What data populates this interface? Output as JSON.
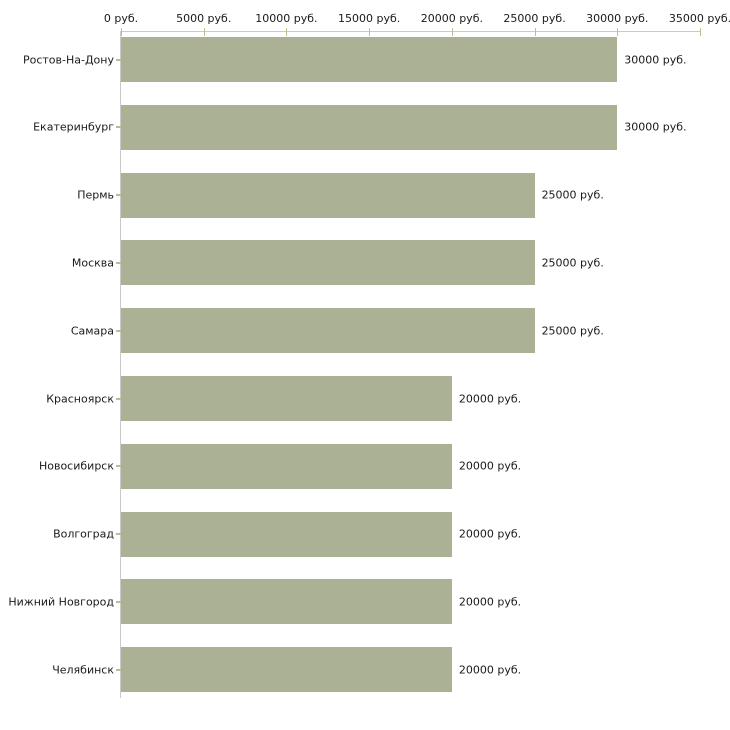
{
  "chart_data": {
    "type": "bar",
    "orientation": "horizontal",
    "title": "",
    "xlabel": "",
    "ylabel": "",
    "categories": [
      "Ростов-На-Дону",
      "Екатеринбург",
      "Пермь",
      "Москва",
      "Самара",
      "Красноярск",
      "Новосибирск",
      "Волгоград",
      "Нижний Новгород",
      "Челябинск"
    ],
    "values": [
      30000,
      30000,
      25000,
      25000,
      25000,
      20000,
      20000,
      20000,
      20000,
      20000
    ],
    "value_labels": [
      "30000 руб.",
      "30000 руб.",
      "25000 руб.",
      "25000 руб.",
      "25000 руб.",
      "20000 руб.",
      "20000 руб.",
      "20000 руб.",
      "20000 руб.",
      "20000 руб."
    ],
    "x_axis": {
      "position": "top",
      "range": [
        0,
        35000
      ],
      "ticks": [
        0,
        5000,
        10000,
        15000,
        20000,
        25000,
        30000,
        35000
      ],
      "tick_labels": [
        "0 руб.",
        "5000 руб.",
        "10000 руб.",
        "15000 руб.",
        "20000 руб.",
        "25000 руб.",
        "30000 руб.",
        "35000 руб."
      ],
      "unit": "руб."
    },
    "legend": null,
    "grid": false,
    "colors": {
      "bar": "#abb194",
      "axis_line": "#c9c9c9",
      "tick": "#bdbd94",
      "text": "#1a1a1a",
      "background": "#ffffff"
    }
  }
}
